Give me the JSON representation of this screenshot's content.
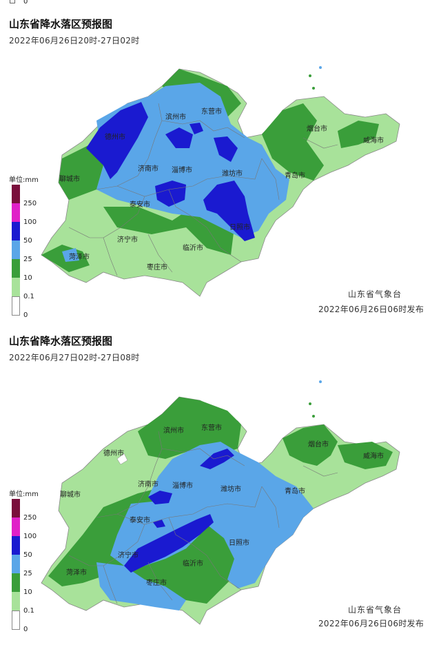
{
  "legend": {
    "unit": "单位:mm",
    "ticks": [
      "250",
      "100",
      "50",
      "25",
      "10",
      "0.1",
      "0"
    ],
    "colors": {
      "c250": "#7a0f3c",
      "c100": "#e020c8",
      "c50": "#1a1ad0",
      "c25": "#5aa6e8",
      "c10": "#3a9e3a",
      "c01": "#a8e29a",
      "c0": "#ffffff"
    }
  },
  "panels": [
    {
      "title": "山东省降水落区预报图",
      "period": "2022年06月26日20时-27日02时",
      "agency": "山东省气象台",
      "issued": "2022年06月26日06时发布",
      "cities": {
        "dezhou": "德州市",
        "binzhou": "滨州市",
        "dongying": "东营市",
        "yantai": "烟台市",
        "weihai": "威海市",
        "liaocheng": "聊城市",
        "jinan": "济南市",
        "zibo": "淄博市",
        "weifang": "潍坊市",
        "qingdao": "青岛市",
        "taian": "泰安市",
        "rizhao": "日照市",
        "jining": "济宁市",
        "linyi": "临沂市",
        "heze": "菏泽市",
        "zaozhuang": "枣庄市"
      }
    },
    {
      "title": "山东省降水落区预报图",
      "period": "2022年06月27日02时-27日08时",
      "agency": "山东省气象台",
      "issued": "2022年06月26日06时发布",
      "cities": {
        "dezhou": "德州市",
        "binzhou": "滨州市",
        "dongying": "东营市",
        "yantai": "烟台市",
        "weihai": "威海市",
        "liaocheng": "聊城市",
        "jinan": "济南市",
        "zibo": "淄博市",
        "weifang": "潍坊市",
        "qingdao": "青岛市",
        "taian": "泰安市",
        "rizhao": "日照市",
        "jining": "济宁市",
        "linyi": "临沂市",
        "heze": "菏泽市",
        "zaozhuang": "枣庄市"
      }
    }
  ]
}
